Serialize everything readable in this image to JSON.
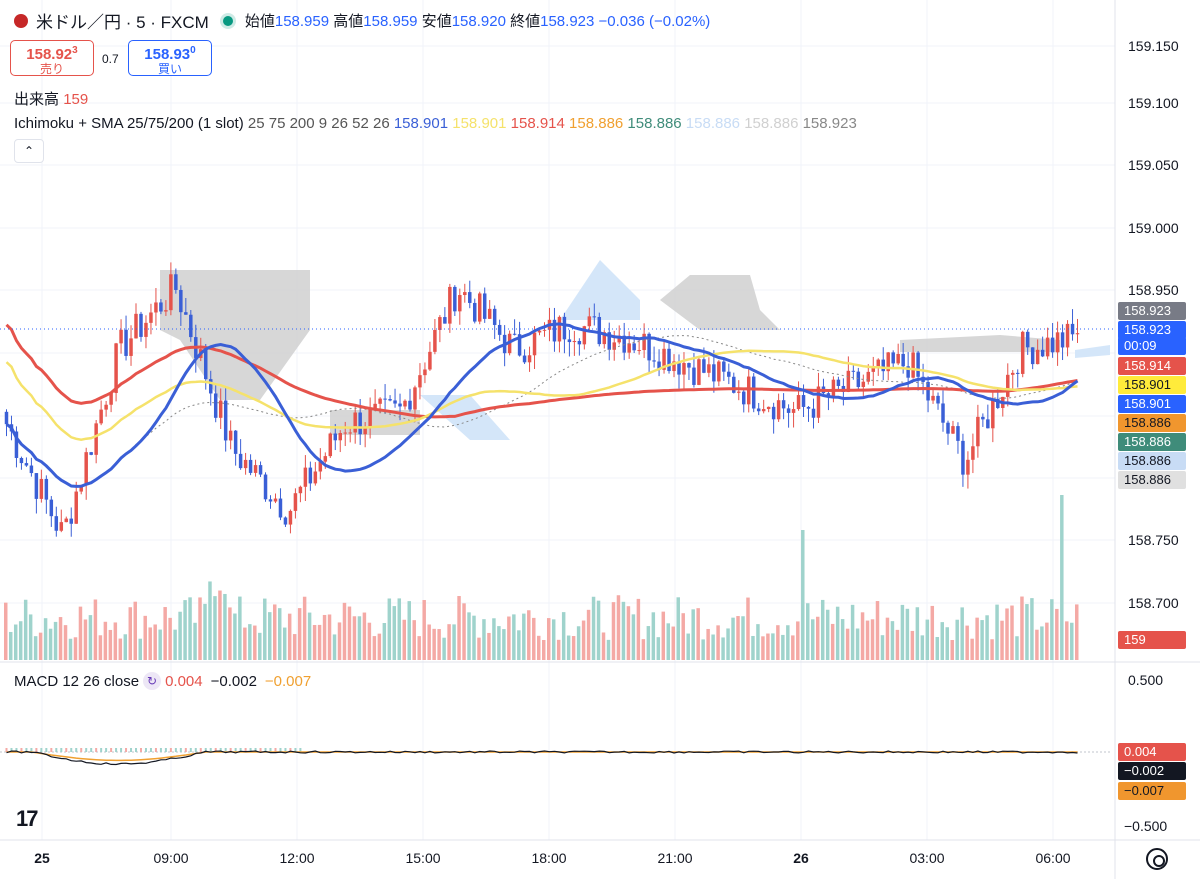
{
  "header": {
    "symbol": "米ドル／円 · 5 · FXCM",
    "ohlc": [
      {
        "label": "始値",
        "value": "158.959"
      },
      {
        "label": "高値",
        "value": "158.959"
      },
      {
        "label": "安値",
        "value": "158.920"
      },
      {
        "label": "終値",
        "value": "158.923"
      }
    ],
    "change": "−0.036 (−0.02%)"
  },
  "trade": {
    "sell_price": "158.92",
    "sell_sup": "3",
    "sell_label": "売り",
    "spread": "0.7",
    "buy_price": "158.93",
    "buy_sup": "0",
    "buy_label": "買い"
  },
  "volume_legend": {
    "label": "出来高",
    "value": "159"
  },
  "indicator_legend": {
    "name": "Ichimoku + SMA 25/75/200 (1 slot)",
    "params": "25 75 200 9 26 52 26",
    "values": [
      {
        "value": "158.901",
        "color": "#3a5fd6"
      },
      {
        "value": "158.901",
        "color": "#f5e26b"
      },
      {
        "value": "158.914",
        "color": "#e5534b"
      },
      {
        "value": "158.886",
        "color": "#f0a030"
      },
      {
        "value": "158.886",
        "color": "#3f8c7a"
      },
      {
        "value": "158.886",
        "color": "#c8dcf5"
      },
      {
        "value": "158.886",
        "color": "#d0d0d0"
      },
      {
        "value": "158.923",
        "color": "#888888"
      }
    ]
  },
  "macd_legend": {
    "name": "MACD 12 26 close",
    "values": [
      {
        "value": "0.004",
        "color": "#e5534b"
      },
      {
        "value": "−0.002",
        "color": "#131722"
      },
      {
        "value": "−0.007",
        "color": "#f0a030"
      }
    ]
  },
  "price_axis": [
    "159.150",
    "159.100",
    "159.050",
    "159.000",
    "158.950",
    "158.750",
    "158.700"
  ],
  "macd_axis": [
    "0.500",
    "−0.500"
  ],
  "price_tags": [
    {
      "text": "158.923",
      "bg": "#787b86",
      "fg": "#ffffff"
    },
    {
      "text": "158.923",
      "bg": "#2962ff",
      "fg": "#ffffff"
    },
    {
      "text": "00:09",
      "bg": "#2962ff",
      "fg": "#ffffff"
    },
    {
      "text": "158.914",
      "bg": "#e5534b",
      "fg": "#ffffff"
    },
    {
      "text": "158.901",
      "bg": "#ffeb3b",
      "fg": "#131722"
    },
    {
      "text": "158.901",
      "bg": "#2962ff",
      "fg": "#ffffff"
    },
    {
      "text": "158.886",
      "bg": "#f0962e",
      "fg": "#131722"
    },
    {
      "text": "158.886",
      "bg": "#3f8c7a",
      "fg": "#ffffff"
    },
    {
      "text": "158.886",
      "bg": "#c8dcf5",
      "fg": "#131722"
    },
    {
      "text": "158.886",
      "bg": "#e0e0e0",
      "fg": "#131722"
    },
    {
      "text": "159",
      "bg": "#e5534b",
      "fg": "#ffffff"
    },
    {
      "text": "0.004",
      "bg": "#e5534b",
      "fg": "#ffffff"
    },
    {
      "text": "−0.002",
      "bg": "#131722",
      "fg": "#ffffff"
    },
    {
      "text": "−0.007",
      "bg": "#f0962e",
      "fg": "#131722"
    }
  ],
  "time_axis": [
    "25",
    "09:00",
    "12:00",
    "15:00",
    "18:00",
    "21:00",
    "26",
    "03:00",
    "06:00"
  ],
  "logo": "17",
  "icons": {
    "collapse": "chevron-up-icon",
    "settings": "gear-icon",
    "macd": "refresh-icon",
    "status": "market-open-dot"
  },
  "chart_data": {
    "type": "candlestick",
    "symbol": "USD/JPY",
    "interval": "5",
    "price_range": [
      158.66,
      159.175
    ],
    "macd_range": [
      -0.55,
      0.55
    ],
    "colors": {
      "up": "#e5534b",
      "down": "#3a5fd6",
      "sma25": "#3a5fd6",
      "sma75": "#f5e26b",
      "sma200": "#e5534b",
      "cloud_bear": "#d3d3d3",
      "cloud_bull": "#cfe3f8",
      "vol_up": "#f4a9a5",
      "vol_down": "#9fd3cc"
    },
    "anchor_prices": [
      158.85,
      158.76,
      158.91,
      158.96,
      158.83,
      158.78,
      158.85,
      158.86,
      158.96,
      158.91,
      158.93,
      158.92,
      158.9,
      158.88,
      158.86,
      158.88,
      158.9,
      158.82,
      158.91,
      158.92
    ],
    "last_close": 158.923
  }
}
